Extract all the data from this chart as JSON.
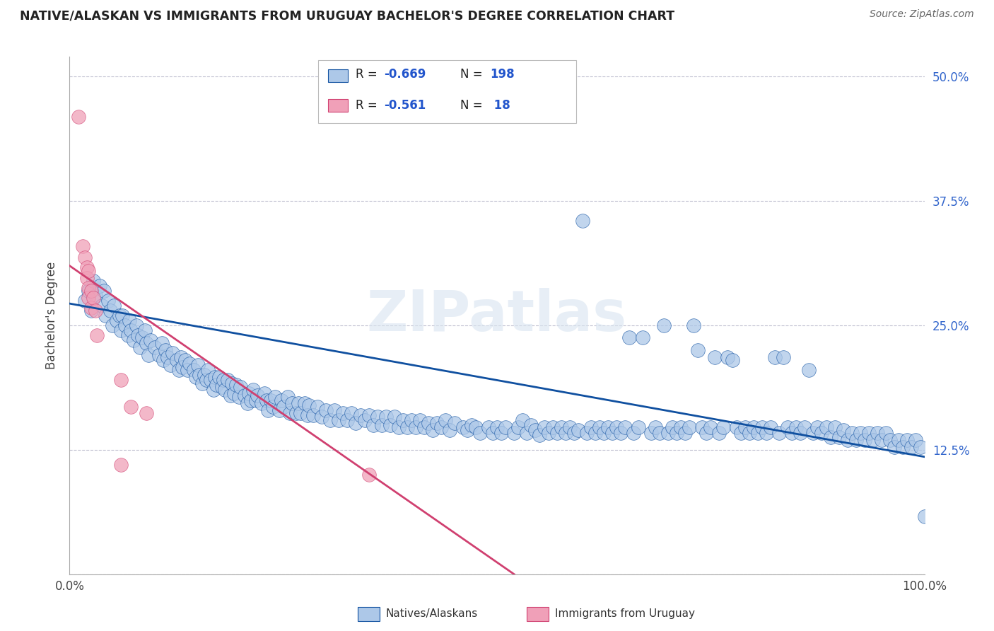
{
  "title": "NATIVE/ALASKAN VS IMMIGRANTS FROM URUGUAY BACHELOR'S DEGREE CORRELATION CHART",
  "source": "Source: ZipAtlas.com",
  "ylabel": "Bachelor's Degree",
  "xlim": [
    0,
    1.0
  ],
  "ylim": [
    0,
    0.52
  ],
  "xticks": [
    0.0,
    1.0
  ],
  "xticklabels": [
    "0.0%",
    "100.0%"
  ],
  "yticks_right": [
    0.125,
    0.25,
    0.375,
    0.5
  ],
  "yticklabels_right": [
    "12.5%",
    "25.0%",
    "37.5%",
    "50.0%"
  ],
  "color_blue": "#adc8e8",
  "color_pink": "#f0a0b8",
  "line_blue": "#1050a0",
  "line_pink": "#d04070",
  "watermark": "ZIPatlas",
  "background": "#ffffff",
  "grid_color": "#c0c0d0",
  "blue_scatter": [
    [
      0.018,
      0.275
    ],
    [
      0.022,
      0.285
    ],
    [
      0.025,
      0.265
    ],
    [
      0.028,
      0.295
    ],
    [
      0.03,
      0.28
    ],
    [
      0.035,
      0.29
    ],
    [
      0.038,
      0.27
    ],
    [
      0.04,
      0.285
    ],
    [
      0.042,
      0.26
    ],
    [
      0.045,
      0.275
    ],
    [
      0.048,
      0.265
    ],
    [
      0.05,
      0.25
    ],
    [
      0.052,
      0.27
    ],
    [
      0.055,
      0.255
    ],
    [
      0.058,
      0.26
    ],
    [
      0.06,
      0.245
    ],
    [
      0.062,
      0.26
    ],
    [
      0.065,
      0.25
    ],
    [
      0.068,
      0.24
    ],
    [
      0.07,
      0.255
    ],
    [
      0.072,
      0.245
    ],
    [
      0.075,
      0.235
    ],
    [
      0.078,
      0.25
    ],
    [
      0.08,
      0.24
    ],
    [
      0.082,
      0.228
    ],
    [
      0.085,
      0.238
    ],
    [
      0.088,
      0.245
    ],
    [
      0.09,
      0.232
    ],
    [
      0.092,
      0.22
    ],
    [
      0.095,
      0.235
    ],
    [
      0.1,
      0.228
    ],
    [
      0.105,
      0.22
    ],
    [
      0.108,
      0.232
    ],
    [
      0.11,
      0.215
    ],
    [
      0.112,
      0.225
    ],
    [
      0.115,
      0.218
    ],
    [
      0.118,
      0.21
    ],
    [
      0.12,
      0.222
    ],
    [
      0.125,
      0.215
    ],
    [
      0.128,
      0.205
    ],
    [
      0.13,
      0.218
    ],
    [
      0.132,
      0.208
    ],
    [
      0.135,
      0.215
    ],
    [
      0.138,
      0.205
    ],
    [
      0.14,
      0.212
    ],
    [
      0.145,
      0.205
    ],
    [
      0.148,
      0.198
    ],
    [
      0.15,
      0.21
    ],
    [
      0.152,
      0.2
    ],
    [
      0.155,
      0.192
    ],
    [
      0.158,
      0.2
    ],
    [
      0.16,
      0.195
    ],
    [
      0.162,
      0.205
    ],
    [
      0.165,
      0.195
    ],
    [
      0.168,
      0.185
    ],
    [
      0.17,
      0.198
    ],
    [
      0.172,
      0.19
    ],
    [
      0.175,
      0.198
    ],
    [
      0.178,
      0.188
    ],
    [
      0.18,
      0.195
    ],
    [
      0.182,
      0.185
    ],
    [
      0.185,
      0.195
    ],
    [
      0.188,
      0.18
    ],
    [
      0.19,
      0.192
    ],
    [
      0.192,
      0.182
    ],
    [
      0.195,
      0.19
    ],
    [
      0.198,
      0.178
    ],
    [
      0.2,
      0.188
    ],
    [
      0.205,
      0.18
    ],
    [
      0.208,
      0.172
    ],
    [
      0.21,
      0.182
    ],
    [
      0.212,
      0.175
    ],
    [
      0.215,
      0.185
    ],
    [
      0.218,
      0.175
    ],
    [
      0.22,
      0.18
    ],
    [
      0.225,
      0.172
    ],
    [
      0.228,
      0.182
    ],
    [
      0.23,
      0.175
    ],
    [
      0.232,
      0.165
    ],
    [
      0.235,
      0.175
    ],
    [
      0.238,
      0.168
    ],
    [
      0.24,
      0.178
    ],
    [
      0.245,
      0.165
    ],
    [
      0.248,
      0.175
    ],
    [
      0.25,
      0.168
    ],
    [
      0.255,
      0.178
    ],
    [
      0.258,
      0.162
    ],
    [
      0.26,
      0.172
    ],
    [
      0.265,
      0.162
    ],
    [
      0.268,
      0.172
    ],
    [
      0.27,
      0.162
    ],
    [
      0.275,
      0.172
    ],
    [
      0.278,
      0.16
    ],
    [
      0.28,
      0.17
    ],
    [
      0.285,
      0.16
    ],
    [
      0.29,
      0.168
    ],
    [
      0.295,
      0.158
    ],
    [
      0.3,
      0.165
    ],
    [
      0.305,
      0.155
    ],
    [
      0.31,
      0.165
    ],
    [
      0.315,
      0.155
    ],
    [
      0.32,
      0.162
    ],
    [
      0.325,
      0.155
    ],
    [
      0.33,
      0.162
    ],
    [
      0.335,
      0.152
    ],
    [
      0.34,
      0.16
    ],
    [
      0.345,
      0.155
    ],
    [
      0.35,
      0.16
    ],
    [
      0.355,
      0.15
    ],
    [
      0.36,
      0.158
    ],
    [
      0.365,
      0.15
    ],
    [
      0.37,
      0.158
    ],
    [
      0.375,
      0.15
    ],
    [
      0.38,
      0.158
    ],
    [
      0.385,
      0.148
    ],
    [
      0.39,
      0.155
    ],
    [
      0.395,
      0.148
    ],
    [
      0.4,
      0.155
    ],
    [
      0.405,
      0.148
    ],
    [
      0.41,
      0.155
    ],
    [
      0.415,
      0.148
    ],
    [
      0.42,
      0.152
    ],
    [
      0.425,
      0.145
    ],
    [
      0.43,
      0.152
    ],
    [
      0.435,
      0.148
    ],
    [
      0.44,
      0.155
    ],
    [
      0.445,
      0.145
    ],
    [
      0.45,
      0.152
    ],
    [
      0.46,
      0.148
    ],
    [
      0.465,
      0.145
    ],
    [
      0.47,
      0.15
    ],
    [
      0.475,
      0.148
    ],
    [
      0.48,
      0.142
    ],
    [
      0.49,
      0.148
    ],
    [
      0.495,
      0.142
    ],
    [
      0.5,
      0.148
    ],
    [
      0.505,
      0.142
    ],
    [
      0.51,
      0.148
    ],
    [
      0.52,
      0.142
    ],
    [
      0.525,
      0.148
    ],
    [
      0.53,
      0.155
    ],
    [
      0.535,
      0.142
    ],
    [
      0.54,
      0.15
    ],
    [
      0.545,
      0.145
    ],
    [
      0.55,
      0.14
    ],
    [
      0.555,
      0.148
    ],
    [
      0.56,
      0.142
    ],
    [
      0.565,
      0.148
    ],
    [
      0.57,
      0.142
    ],
    [
      0.575,
      0.148
    ],
    [
      0.58,
      0.142
    ],
    [
      0.585,
      0.148
    ],
    [
      0.59,
      0.142
    ],
    [
      0.595,
      0.145
    ],
    [
      0.6,
      0.355
    ],
    [
      0.605,
      0.142
    ],
    [
      0.61,
      0.148
    ],
    [
      0.615,
      0.142
    ],
    [
      0.62,
      0.148
    ],
    [
      0.625,
      0.142
    ],
    [
      0.63,
      0.148
    ],
    [
      0.635,
      0.142
    ],
    [
      0.64,
      0.148
    ],
    [
      0.645,
      0.142
    ],
    [
      0.65,
      0.148
    ],
    [
      0.655,
      0.238
    ],
    [
      0.66,
      0.142
    ],
    [
      0.665,
      0.148
    ],
    [
      0.67,
      0.238
    ],
    [
      0.68,
      0.142
    ],
    [
      0.685,
      0.148
    ],
    [
      0.69,
      0.142
    ],
    [
      0.695,
      0.25
    ],
    [
      0.7,
      0.142
    ],
    [
      0.705,
      0.148
    ],
    [
      0.71,
      0.142
    ],
    [
      0.715,
      0.148
    ],
    [
      0.72,
      0.142
    ],
    [
      0.725,
      0.148
    ],
    [
      0.73,
      0.25
    ],
    [
      0.735,
      0.225
    ],
    [
      0.74,
      0.148
    ],
    [
      0.745,
      0.142
    ],
    [
      0.75,
      0.148
    ],
    [
      0.755,
      0.218
    ],
    [
      0.76,
      0.142
    ],
    [
      0.765,
      0.148
    ],
    [
      0.77,
      0.218
    ],
    [
      0.775,
      0.215
    ],
    [
      0.78,
      0.148
    ],
    [
      0.785,
      0.142
    ],
    [
      0.79,
      0.148
    ],
    [
      0.795,
      0.142
    ],
    [
      0.8,
      0.148
    ],
    [
      0.805,
      0.142
    ],
    [
      0.81,
      0.148
    ],
    [
      0.815,
      0.142
    ],
    [
      0.82,
      0.148
    ],
    [
      0.825,
      0.218
    ],
    [
      0.83,
      0.142
    ],
    [
      0.835,
      0.218
    ],
    [
      0.84,
      0.148
    ],
    [
      0.845,
      0.142
    ],
    [
      0.85,
      0.148
    ],
    [
      0.855,
      0.142
    ],
    [
      0.86,
      0.148
    ],
    [
      0.865,
      0.205
    ],
    [
      0.87,
      0.142
    ],
    [
      0.875,
      0.148
    ],
    [
      0.88,
      0.142
    ],
    [
      0.885,
      0.148
    ],
    [
      0.89,
      0.138
    ],
    [
      0.895,
      0.148
    ],
    [
      0.9,
      0.138
    ],
    [
      0.905,
      0.145
    ],
    [
      0.91,
      0.135
    ],
    [
      0.915,
      0.142
    ],
    [
      0.92,
      0.135
    ],
    [
      0.925,
      0.142
    ],
    [
      0.93,
      0.135
    ],
    [
      0.935,
      0.142
    ],
    [
      0.94,
      0.135
    ],
    [
      0.945,
      0.142
    ],
    [
      0.95,
      0.135
    ],
    [
      0.955,
      0.142
    ],
    [
      0.96,
      0.135
    ],
    [
      0.965,
      0.128
    ],
    [
      0.97,
      0.135
    ],
    [
      0.975,
      0.128
    ],
    [
      0.98,
      0.135
    ],
    [
      0.985,
      0.128
    ],
    [
      0.99,
      0.135
    ],
    [
      0.995,
      0.128
    ],
    [
      1.0,
      0.058
    ]
  ],
  "pink_scatter": [
    [
      0.01,
      0.46
    ],
    [
      0.015,
      0.33
    ],
    [
      0.018,
      0.318
    ],
    [
      0.02,
      0.308
    ],
    [
      0.02,
      0.298
    ],
    [
      0.022,
      0.288
    ],
    [
      0.022,
      0.278
    ],
    [
      0.022,
      0.305
    ],
    [
      0.025,
      0.285
    ],
    [
      0.025,
      0.268
    ],
    [
      0.028,
      0.278
    ],
    [
      0.03,
      0.265
    ],
    [
      0.032,
      0.24
    ],
    [
      0.06,
      0.195
    ],
    [
      0.072,
      0.168
    ],
    [
      0.09,
      0.162
    ],
    [
      0.35,
      0.1
    ],
    [
      0.06,
      0.11
    ]
  ],
  "blue_line": [
    [
      0.0,
      0.272
    ],
    [
      1.0,
      0.118
    ]
  ],
  "pink_line": [
    [
      0.0,
      0.31
    ],
    [
      0.52,
      0.0
    ]
  ],
  "pink_line_dashed": [
    [
      0.52,
      0.0
    ],
    [
      0.58,
      -0.03
    ]
  ]
}
